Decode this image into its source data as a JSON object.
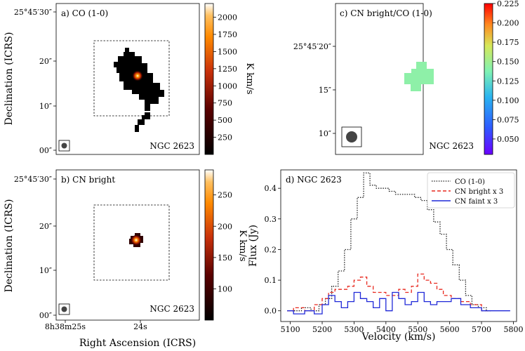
{
  "chart_data": [
    {
      "id": "a",
      "type": "heatmap",
      "panel_label": "a) CO (1-0)",
      "galaxy": "NGC 2623",
      "ylabel": "Declination (ICRS)",
      "yticks": [
        "25°45′30″",
        "20″",
        "10″",
        "00″"
      ],
      "colorbar": {
        "label": "K km/s",
        "range": [
          0,
          2200
        ],
        "ticks": [
          "250",
          "500",
          "750",
          "1000",
          "1250",
          "1500",
          "1750",
          "2000"
        ],
        "tick_values": [
          250,
          500,
          750,
          1000,
          1250,
          1500,
          1750,
          2000
        ]
      },
      "peak_value": 2150,
      "beam": "circle"
    },
    {
      "id": "b",
      "type": "heatmap",
      "panel_label": "b) CN bright",
      "galaxy": "NGC 2623",
      "ylabel": "Declination (ICRS)",
      "xlabel": "Right Ascension (ICRS)",
      "yticks": [
        "25°45′30″",
        "20″",
        "10″",
        "00″"
      ],
      "xticks": [
        "8h38m25s",
        "24s"
      ],
      "colorbar": {
        "label": "K km/s",
        "range": [
          50,
          290
        ],
        "ticks": [
          "100",
          "150",
          "200",
          "250"
        ],
        "tick_values": [
          100,
          150,
          200,
          250
        ]
      },
      "peak_value": 285,
      "beam": "circle"
    },
    {
      "id": "c",
      "type": "heatmap",
      "panel_label": "c) CN bright/CO (1-0)",
      "galaxy": "NGC 2623",
      "yticks": [
        "25°45′20″",
        "15″",
        "10″"
      ],
      "colorbar": {
        "label": "",
        "range": [
          0.03,
          0.225
        ],
        "ticks": [
          "0.050",
          "0.075",
          "0.100",
          "0.125",
          "0.150",
          "0.175",
          "0.200",
          "0.225"
        ],
        "tick_values": [
          0.05,
          0.075,
          0.1,
          0.125,
          0.15,
          0.175,
          0.2,
          0.225
        ]
      },
      "ratio_value": 0.13,
      "beam": "circle"
    },
    {
      "id": "d",
      "type": "line",
      "panel_label": "d) NGC 2623",
      "xlabel": "Velocity (km/s)",
      "ylabel": "Flux (Jy)",
      "xlim": [
        5070,
        5810
      ],
      "ylim": [
        -0.035,
        0.46
      ],
      "xticks": [
        5100,
        5200,
        5300,
        5400,
        5500,
        5600,
        5700,
        5800
      ],
      "yticks": [
        0.0,
        0.1,
        0.2,
        0.3,
        0.4
      ],
      "ytick_labels": [
        "0.0",
        "0.1",
        "0.2",
        "0.3",
        "0.4"
      ],
      "legend": "top-right",
      "series": [
        {
          "name": "CO (1-0)",
          "style": "dotted",
          "color": "#222222",
          "x": [
            5090,
            5120,
            5150,
            5180,
            5200,
            5220,
            5240,
            5260,
            5280,
            5300,
            5320,
            5340,
            5360,
            5380,
            5400,
            5420,
            5440,
            5460,
            5480,
            5500,
            5520,
            5540,
            5560,
            5580,
            5600,
            5620,
            5640,
            5660,
            5680,
            5700,
            5730
          ],
          "y": [
            0.0,
            0.0,
            0.01,
            0.0,
            0.02,
            0.04,
            0.08,
            0.13,
            0.2,
            0.3,
            0.37,
            0.45,
            0.41,
            0.4,
            0.4,
            0.39,
            0.38,
            0.38,
            0.38,
            0.37,
            0.36,
            0.33,
            0.29,
            0.25,
            0.2,
            0.15,
            0.1,
            0.05,
            0.02,
            0.01,
            0.0
          ]
        },
        {
          "name": "CN bright x 3",
          "style": "dashed",
          "color": "#e8281e",
          "x": [
            5090,
            5130,
            5160,
            5190,
            5210,
            5230,
            5250,
            5270,
            5290,
            5310,
            5330,
            5350,
            5370,
            5390,
            5410,
            5430,
            5450,
            5470,
            5490,
            5510,
            5530,
            5550,
            5570,
            5590,
            5620,
            5650,
            5680,
            5720
          ],
          "y": [
            0.0,
            0.01,
            0.0,
            0.02,
            0.04,
            0.06,
            0.07,
            0.07,
            0.08,
            0.1,
            0.11,
            0.08,
            0.06,
            0.06,
            0.05,
            0.05,
            0.07,
            0.06,
            0.08,
            0.12,
            0.1,
            0.09,
            0.07,
            0.05,
            0.04,
            0.03,
            0.02,
            0.0
          ]
        },
        {
          "name": "CN faint x 3",
          "style": "solid",
          "color": "#1f28d8",
          "x": [
            5090,
            5130,
            5160,
            5190,
            5210,
            5230,
            5250,
            5270,
            5290,
            5310,
            5330,
            5350,
            5370,
            5390,
            5410,
            5430,
            5450,
            5470,
            5490,
            5510,
            5530,
            5550,
            5570,
            5590,
            5620,
            5650,
            5680,
            5720,
            5790
          ],
          "y": [
            0.0,
            -0.01,
            0.0,
            -0.01,
            0.02,
            0.05,
            0.03,
            0.01,
            0.03,
            0.06,
            0.04,
            0.03,
            0.01,
            0.04,
            0.0,
            0.06,
            0.04,
            0.02,
            0.03,
            0.06,
            0.03,
            0.02,
            0.03,
            0.03,
            0.04,
            0.02,
            0.01,
            0.0,
            0.0
          ]
        }
      ]
    }
  ]
}
